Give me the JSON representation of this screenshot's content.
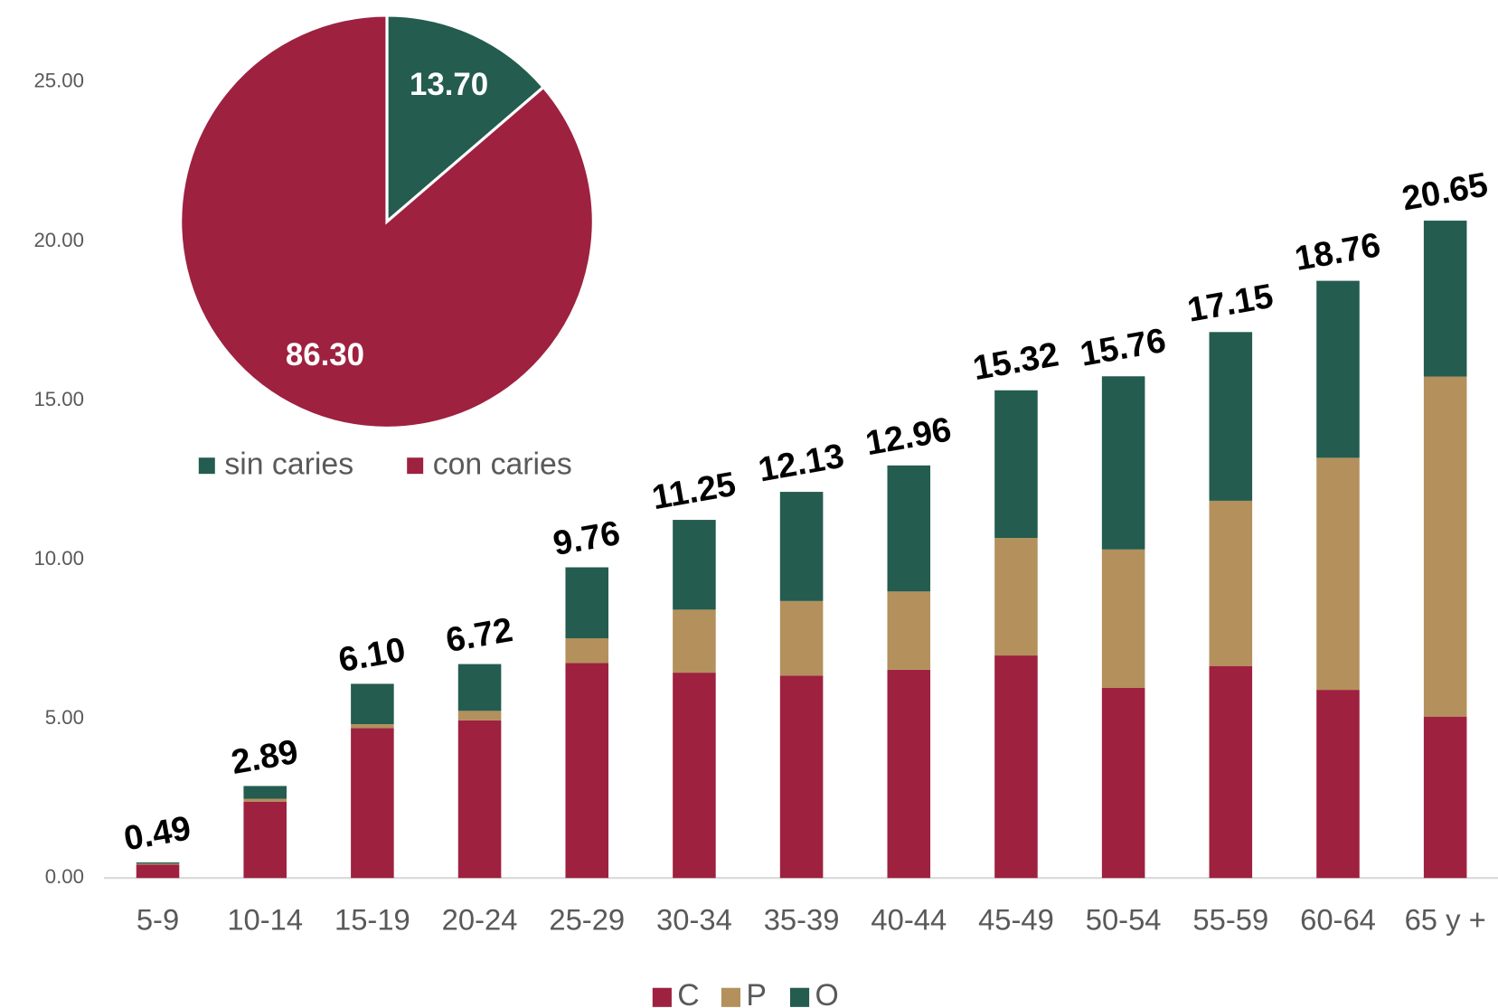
{
  "chart_data": [
    {
      "type": "bar",
      "stacked": true,
      "categories": [
        "5-9",
        "10-14",
        "15-19",
        "20-24",
        "25-29",
        "30-34",
        "35-39",
        "40-44",
        "45-49",
        "50-54",
        "55-59",
        "60-64",
        "65 y +"
      ],
      "series": [
        {
          "name": "C",
          "color": "#9e2140",
          "values": [
            0.42,
            2.4,
            4.71,
            4.95,
            6.75,
            6.45,
            6.36,
            6.54,
            6.99,
            5.97,
            6.66,
            5.91,
            5.07
          ]
        },
        {
          "name": "P",
          "color": "#b3905c",
          "values": [
            0.03,
            0.09,
            0.12,
            0.3,
            0.78,
            1.98,
            2.34,
            2.46,
            3.69,
            4.35,
            5.19,
            7.29,
            10.68
          ]
        },
        {
          "name": "O",
          "color": "#245c4f",
          "values": [
            0.04,
            0.4,
            1.27,
            1.47,
            2.23,
            2.82,
            3.43,
            3.96,
            4.64,
            5.44,
            5.3,
            5.56,
            4.9
          ]
        }
      ],
      "totals": [
        0.49,
        2.89,
        6.1,
        6.72,
        9.76,
        11.25,
        12.13,
        12.96,
        15.32,
        15.76,
        17.15,
        18.76,
        20.65
      ],
      "total_labels": [
        "0.49",
        "2.89",
        "6.10",
        "6.72",
        "9.76",
        "11.25",
        "12.13",
        "12.96",
        "15.32",
        "15.76",
        "17.15",
        "18.76",
        "20.65"
      ],
      "ylim": [
        0,
        25
      ],
      "yticks": [
        {
          "value": 0,
          "label": "0.00"
        },
        {
          "value": 5,
          "label": "5.00"
        },
        {
          "value": 10,
          "label": "10.00"
        },
        {
          "value": 15,
          "label": "15.00"
        },
        {
          "value": 20,
          "label": "20.00"
        },
        {
          "value": 25,
          "label": "25.00"
        }
      ],
      "grid": false,
      "legend": "bottom"
    },
    {
      "type": "pie",
      "categories": [
        "sin caries",
        "con caries"
      ],
      "values": [
        13.7,
        86.3
      ],
      "value_labels": [
        "13.70",
        "86.30"
      ],
      "colors": [
        "#245c4f",
        "#9e2140"
      ],
      "legend": "bottom"
    }
  ]
}
